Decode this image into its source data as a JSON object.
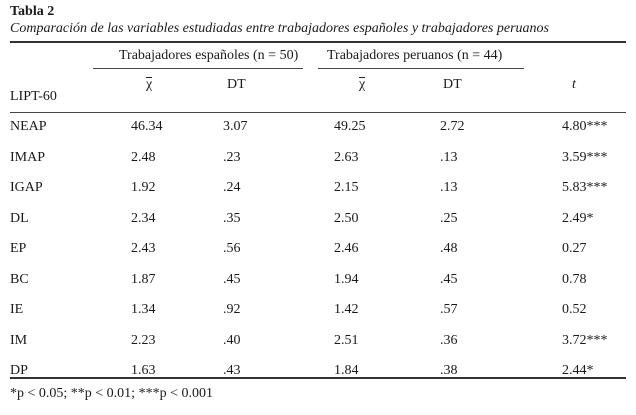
{
  "table": {
    "title": "Tabla 2",
    "caption": "Comparación de las variables estudiadas entre trabajadores españoles y trabajadores peruanos",
    "groups": {
      "spanish": "Trabajadores españoles (n = 50)",
      "peruvian": "Trabajadores  peruanos (n = 44)"
    },
    "subheaders": {
      "mean": "χ",
      "sd": "DT",
      "t": "t"
    },
    "row_header": "LIPT-60",
    "rows": [
      {
        "var": "NEAP",
        "sp_mean": "46.34",
        "sp_sd": "3.07",
        "pe_mean": "49.25",
        "pe_sd": "2.72",
        "t": "4.80***"
      },
      {
        "var": "IMAP",
        "sp_mean": "2.48",
        "sp_sd": ".23",
        "pe_mean": "2.63",
        "pe_sd": ".13",
        "t": "3.59***"
      },
      {
        "var": "IGAP",
        "sp_mean": "1.92",
        "sp_sd": ".24",
        "pe_mean": "2.15",
        "pe_sd": ".13",
        "t": "5.83***"
      },
      {
        "var": "DL",
        "sp_mean": "2.34",
        "sp_sd": ".35",
        "pe_mean": "2.50",
        "pe_sd": ".25",
        "t": "2.49*"
      },
      {
        "var": "EP",
        "sp_mean": "2.43",
        "sp_sd": ".56",
        "pe_mean": "2.46",
        "pe_sd": ".48",
        "t": "0.27"
      },
      {
        "var": "BC",
        "sp_mean": "1.87",
        "sp_sd": ".45",
        "pe_mean": "1.94",
        "pe_sd": ".45",
        "t": "0.78"
      },
      {
        "var": "IE",
        "sp_mean": "1.34",
        "sp_sd": ".92",
        "pe_mean": "1.42",
        "pe_sd": ".57",
        "t": "0.52"
      },
      {
        "var": "IM",
        "sp_mean": "2.23",
        "sp_sd": ".40",
        "pe_mean": "2.51",
        "pe_sd": ".36",
        "t": "3.72***"
      },
      {
        "var": "DP",
        "sp_mean": "1.63",
        "sp_sd": ".43",
        "pe_mean": "1.84",
        "pe_sd": ".38",
        "t": "2.44*"
      }
    ],
    "footnote": "*p < 0.05; **p < 0.01; ***p < 0.001"
  }
}
